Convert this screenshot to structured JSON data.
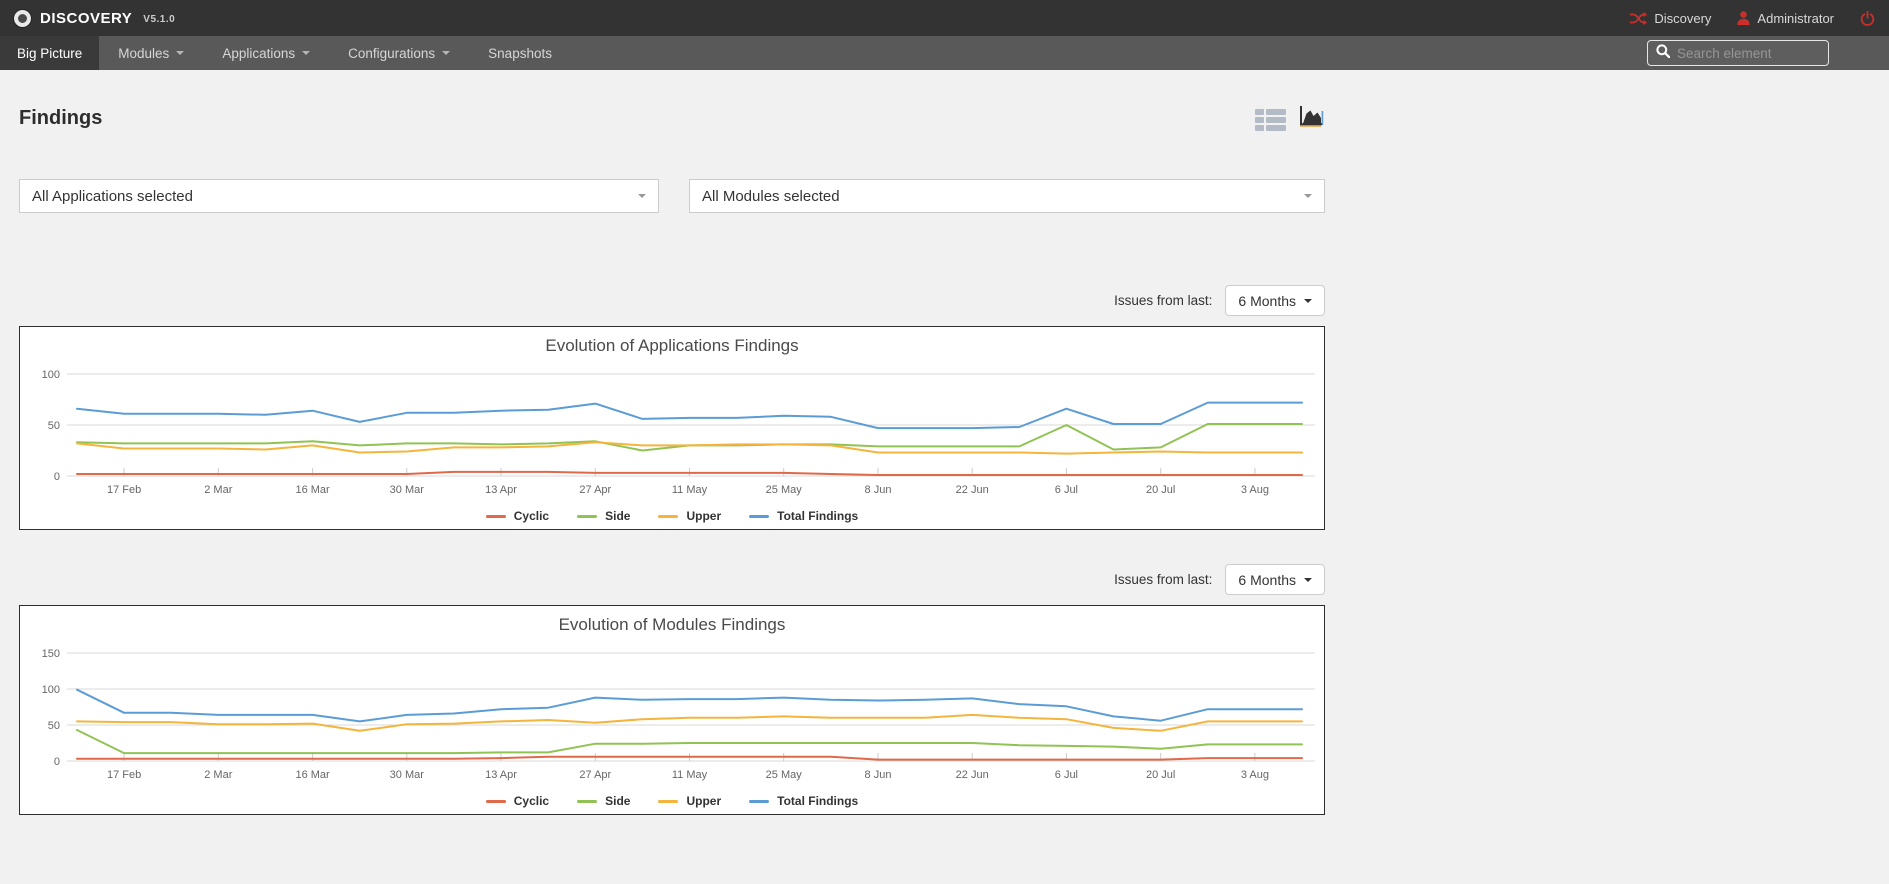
{
  "header": {
    "brand": "DISCOVERY",
    "version": "V5.1.0",
    "discovery_link": "Discovery",
    "user_name": "Administrator"
  },
  "nav": {
    "items": [
      {
        "label": "Big Picture"
      },
      {
        "label": "Modules"
      },
      {
        "label": "Applications"
      },
      {
        "label": "Configurations"
      },
      {
        "label": "Snapshots"
      }
    ],
    "search": {
      "placeholder": "Search element"
    }
  },
  "page": {
    "title": "Findings",
    "filters": {
      "applications_value": "All Applications selected",
      "modules_value": "All Modules selected"
    },
    "issues_from_label": "Issues from last:",
    "issues_from_value": "6 Months"
  },
  "chart_data": [
    {
      "type": "line",
      "title": "Evolution of Applications Findings",
      "x_ticks": [
        "17 Feb",
        "2 Mar",
        "16 Mar",
        "30 Mar",
        "13 Apr",
        "27 Apr",
        "11 May",
        "25 May",
        "8 Jun",
        "22 Jun",
        "6 Jul",
        "20 Jul",
        "3 Aug"
      ],
      "ylim": [
        0,
        100
      ],
      "yticks": [
        0,
        50,
        100
      ],
      "grid": true,
      "legend_position": "bottom",
      "series": [
        {
          "name": "Cyclic",
          "color": "#e0684b",
          "values": [
            2,
            2,
            2,
            2,
            2,
            2,
            2,
            2,
            4,
            4,
            4,
            3,
            3,
            3,
            3,
            3,
            2,
            1,
            1,
            1,
            1,
            1,
            1,
            1,
            1,
            1,
            1
          ]
        },
        {
          "name": "Side",
          "color": "#90c353",
          "values": [
            33,
            32,
            32,
            32,
            32,
            34,
            30,
            32,
            32,
            31,
            32,
            34,
            25,
            30,
            30,
            31,
            31,
            29,
            29,
            29,
            29,
            50,
            26,
            28,
            51,
            51,
            51
          ]
        },
        {
          "name": "Upper",
          "color": "#f5b43c",
          "values": [
            32,
            27,
            27,
            27,
            26,
            30,
            23,
            24,
            28,
            28,
            29,
            33,
            30,
            30,
            31,
            31,
            30,
            23,
            23,
            23,
            23,
            22,
            23,
            24,
            23,
            23,
            23
          ]
        },
        {
          "name": "Total Findings",
          "color": "#5b9cd6",
          "values": [
            66,
            61,
            61,
            61,
            60,
            64,
            53,
            62,
            62,
            64,
            65,
            71,
            56,
            57,
            57,
            59,
            58,
            47,
            47,
            47,
            48,
            66,
            51,
            51,
            72,
            72,
            72
          ]
        }
      ]
    },
    {
      "type": "line",
      "title": "Evolution of Modules Findings",
      "x_ticks": [
        "17 Feb",
        "2 Mar",
        "16 Mar",
        "30 Mar",
        "13 Apr",
        "27 Apr",
        "11 May",
        "25 May",
        "8 Jun",
        "22 Jun",
        "6 Jul",
        "20 Jul",
        "3 Aug"
      ],
      "ylim": [
        0,
        150
      ],
      "yticks": [
        0,
        50,
        100,
        150
      ],
      "grid": true,
      "legend_position": "bottom",
      "series": [
        {
          "name": "Cyclic",
          "color": "#e0684b",
          "values": [
            3,
            3,
            3,
            3,
            3,
            3,
            3,
            3,
            3,
            4,
            6,
            6,
            6,
            6,
            6,
            6,
            6,
            2,
            2,
            2,
            2,
            2,
            2,
            2,
            4,
            4,
            4
          ]
        },
        {
          "name": "Side",
          "color": "#90c353",
          "values": [
            43,
            11,
            11,
            11,
            11,
            11,
            11,
            11,
            11,
            12,
            12,
            24,
            24,
            25,
            25,
            25,
            25,
            25,
            25,
            25,
            22,
            21,
            20,
            17,
            23,
            23,
            23
          ]
        },
        {
          "name": "Upper",
          "color": "#f5b43c",
          "values": [
            55,
            54,
            54,
            51,
            51,
            52,
            42,
            51,
            52,
            55,
            57,
            53,
            58,
            60,
            60,
            62,
            60,
            60,
            60,
            64,
            60,
            58,
            46,
            42,
            55,
            55,
            55
          ]
        },
        {
          "name": "Total Findings",
          "color": "#5b9cd6",
          "values": [
            99,
            67,
            67,
            64,
            64,
            64,
            55,
            64,
            66,
            72,
            74,
            88,
            85,
            86,
            86,
            88,
            85,
            84,
            85,
            87,
            79,
            76,
            62,
            56,
            72,
            72,
            72
          ]
        }
      ]
    }
  ],
  "colors": {
    "accent_red": "#c9302c",
    "header_bg": "#333333",
    "nav_bg": "#595959",
    "active_tab_bg": "#3a3a3a",
    "page_bg": "#f1f1f1",
    "grid_line": "#d9d9d9",
    "axis_text": "#666666"
  }
}
